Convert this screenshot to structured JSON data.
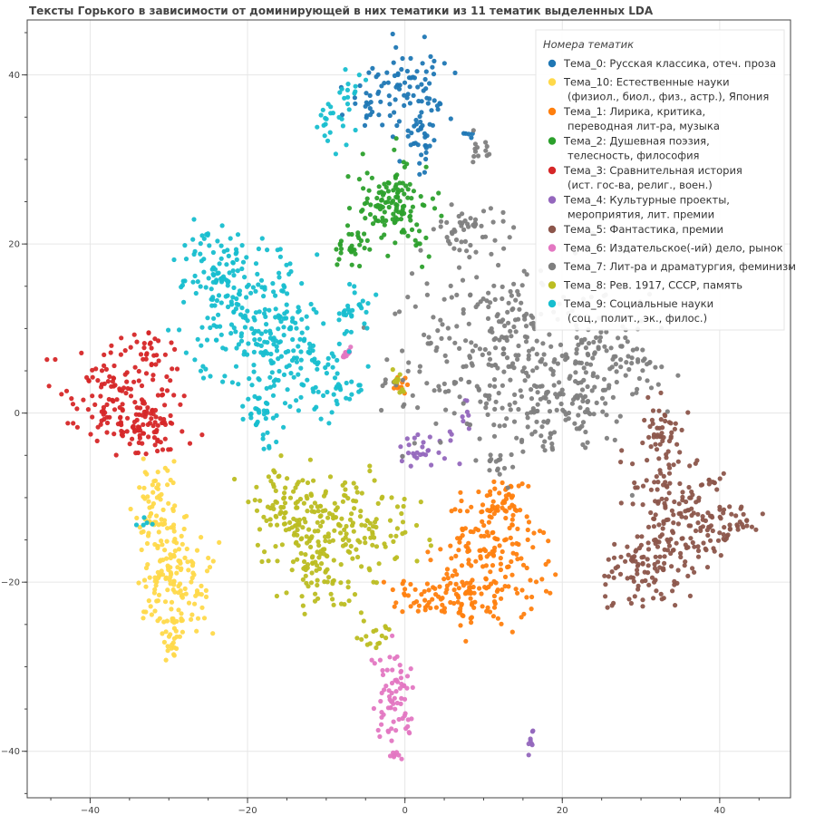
{
  "chart_data": {
    "type": "scatter",
    "title": "Тексты Горького в зависимости от доминирующей в них тематики из 11 тематик выделенных LDA",
    "xlabel": "",
    "ylabel": "",
    "xlim": [
      -48,
      49
    ],
    "ylim": [
      -45.5,
      46.5
    ],
    "x_ticks": [
      -40,
      -20,
      0,
      20,
      40
    ],
    "y_ticks": [
      40,
      20,
      0,
      -20,
      -40
    ],
    "x_tick_labels": [
      "−40",
      "−20",
      "0",
      "20",
      "40"
    ],
    "y_tick_labels": [
      "40",
      "20",
      "0",
      "−20",
      "−40"
    ],
    "grid": true,
    "legend": {
      "title": "Номера тематик",
      "placement": "top-right"
    },
    "series": [
      {
        "name": "Тема_0: Русская классика, отеч. проза",
        "legend_lines": [
          "Тема_0: Русская классика, отеч. проза"
        ],
        "color": "#1f77b4",
        "count": 130,
        "clusters": [
          [
            1.5,
            38,
            2.5,
            3.5
          ],
          [
            -4,
            37,
            2.2,
            2
          ],
          [
            2,
            32,
            1.2,
            2.5
          ],
          [
            8,
            33,
            0.5,
            0.3
          ]
        ]
      },
      {
        "name": "Тема_10: Естественные науки (физиол., биол., физ., астр.), Япония",
        "legend_lines": [
          "Тема_10: Естественные науки",
          " (физиол., биол., физ., астр.), Япония"
        ],
        "color": "#ffd94a",
        "count": 230,
        "clusters": [
          [
            -31,
            -12,
            1.8,
            3
          ],
          [
            -29.5,
            -20,
            2.8,
            3.5
          ],
          [
            -29.5,
            -27,
            0.8,
            2
          ]
        ]
      },
      {
        "name": "Тема_1: Лирика, критика, переводная лит-ра, музыка",
        "legend_lines": [
          "Тема_1: Лирика, критика,",
          " переводная лит-ра, музыка"
        ],
        "color": "#ff7f0e",
        "count": 300,
        "clusters": [
          [
            11,
            -17,
            3.8,
            5
          ],
          [
            5,
            -22,
            4.5,
            1.5
          ],
          [
            13,
            -10,
            2,
            1.3
          ],
          [
            -1,
            3.5,
            0.6,
            1
          ]
        ]
      },
      {
        "name": "Тема_2: Душевная поэзия, телесность, философия",
        "legend_lines": [
          "Тема_2: Душевная поэзия,",
          " телесность, философия"
        ],
        "color": "#2ca02c",
        "count": 160,
        "clusters": [
          [
            -1.5,
            24.5,
            3.5,
            3.2
          ],
          [
            -6.5,
            19.5,
            1.2,
            1.2
          ]
        ]
      },
      {
        "name": "Тема_3: Сравнительная история (ист. гос-ва, религ., воен.)",
        "legend_lines": [
          "Тема_3: Сравнительная история",
          " (ист. гос-ва, религ., воен.)"
        ],
        "color": "#d62728",
        "count": 220,
        "clusters": [
          [
            -36,
            2,
            4.5,
            3
          ],
          [
            -33,
            7.5,
            2,
            1.2
          ],
          [
            -33,
            -2,
            3,
            2
          ]
        ]
      },
      {
        "name": "Тема_4: Культурные проекты, мероприятия, лит. премии",
        "legend_lines": [
          "Тема_4: Культурные проекты,",
          " мероприятия, лит. премии"
        ],
        "color": "#9467bd",
        "count": 45,
        "clusters": [
          [
            3,
            -4,
            2.3,
            1.3
          ],
          [
            7.5,
            0,
            0.5,
            1
          ],
          [
            16,
            -39,
            0.4,
            1
          ]
        ]
      },
      {
        "name": "Тема_5: Фантастика, премии",
        "legend_lines": [
          "Тема_5: Фантастика, премии"
        ],
        "color": "#8c564b",
        "count": 330,
        "clusters": [
          [
            35,
            -12,
            4.5,
            4.5
          ],
          [
            30,
            -19,
            3,
            2.5
          ],
          [
            32.5,
            -2,
            2,
            2.2
          ],
          [
            42,
            -13,
            2,
            1
          ]
        ]
      },
      {
        "name": "Тема_6: Издательское(-ий) дело, рынок",
        "legend_lines": [
          "Тема_6: Издательское(-ий) дело, рынок"
        ],
        "color": "#e377c2",
        "count": 90,
        "clusters": [
          [
            -1.5,
            -33,
            1.5,
            3.5
          ],
          [
            -1,
            -40.5,
            0.6,
            0.3
          ],
          [
            -7.5,
            7,
            0.5,
            0.8
          ]
        ]
      },
      {
        "name": "Тема_7: Лит-ра и драматургия, феминизм",
        "legend_lines": [
          "Тема_7: Лит-ра и драматургия, феминизм"
        ],
        "color": "#7f7f7f",
        "count": 560,
        "clusters": [
          [
            13,
            7,
            8,
            6.5
          ],
          [
            8,
            22,
            3,
            2
          ],
          [
            20,
            0,
            3.5,
            2.5
          ],
          [
            27,
            7,
            4,
            3
          ],
          [
            9.5,
            31,
            1,
            1.5
          ],
          [
            12,
            -6,
            1.5,
            1.2
          ]
        ]
      },
      {
        "name": "Тема_8: Рев. 1917, СССР, память",
        "legend_lines": [
          "Тема_8: Рев. 1917, СССР, память"
        ],
        "color": "#bcbd22",
        "count": 330,
        "clusters": [
          [
            -7,
            -13,
            5,
            3.5
          ],
          [
            -15,
            -12,
            3,
            3
          ],
          [
            -11,
            -19,
            2.5,
            2.5
          ],
          [
            -4,
            -26,
            1.2,
            1.2
          ],
          [
            -1,
            4,
            0.6,
            1
          ]
        ]
      },
      {
        "name": "Тема_9: Социальные науки (соц., полит., эк., филос.)",
        "legend_lines": [
          "Тема_9: Социальные науки",
          " (соц., полит., эк., филос.)"
        ],
        "color": "#17becf",
        "count": 470,
        "clusters": [
          [
            -20,
            12,
            4.5,
            5
          ],
          [
            -14,
            7,
            4,
            4
          ],
          [
            -24,
            17.5,
            3,
            3
          ],
          [
            -18,
            0,
            2,
            2.5
          ],
          [
            -8,
            3,
            1.5,
            1.5
          ],
          [
            -6,
            12,
            1.5,
            2
          ],
          [
            -7,
            38,
            1,
            1.5
          ],
          [
            -9,
            34,
            1.5,
            1.5
          ],
          [
            -33,
            -13,
            0.6,
            0.3
          ]
        ]
      }
    ]
  }
}
